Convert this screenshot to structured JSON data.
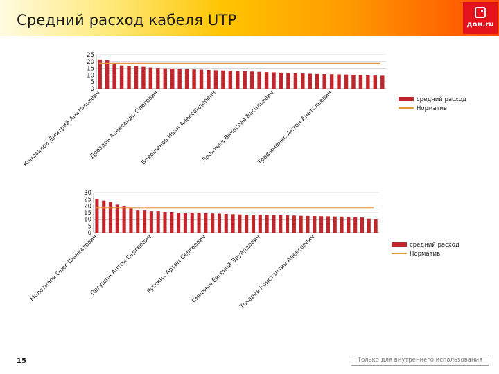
{
  "header": {
    "title": "Средний расход кабеля UTP",
    "logo_text": "дом.ru"
  },
  "footer": {
    "page_number": "15",
    "internal_note": "Только для внутреннего использования"
  },
  "colors": {
    "bar": "#c0272d",
    "norm": "#e8963a"
  },
  "chart_data": [
    {
      "type": "bar",
      "ylim": [
        0,
        25
      ],
      "yticks": [
        0,
        5,
        10,
        15,
        20,
        25
      ],
      "grid": true,
      "legend_position": "right",
      "tick_labels": [
        {
          "index": 0,
          "text": "Коновалов Дмитрий Анатольевич"
        },
        {
          "index": 8,
          "text": "Дроздов Александр Олегович"
        },
        {
          "index": 16,
          "text": "Бояршинов Иван Александрович"
        },
        {
          "index": 24,
          "text": "Леонтьев Вячеслав Васильевич"
        },
        {
          "index": 32,
          "text": "Трофименко Антон Анатольевич"
        }
      ],
      "series": [
        {
          "name": "средний расход",
          "type": "bar",
          "values": [
            21.5,
            21,
            18,
            17,
            16.8,
            16.5,
            16,
            15.5,
            15.3,
            15,
            14.8,
            14.6,
            14.4,
            14.2,
            14,
            13.8,
            13.6,
            13.4,
            13.2,
            13,
            12.8,
            12.6,
            12.4,
            12.2,
            12,
            11.8,
            11.6,
            11.4,
            11.2,
            11,
            10.8,
            10.7,
            10.6,
            10.5,
            10.4,
            10.2,
            10,
            9.8,
            9.6,
            9.5
          ]
        },
        {
          "name": "Норматив",
          "type": "line",
          "value": 18.5
        }
      ]
    },
    {
      "type": "bar",
      "ylim": [
        0,
        30
      ],
      "yticks": [
        0,
        5,
        10,
        15,
        20,
        25,
        30
      ],
      "grid": true,
      "legend_position": "right",
      "tick_labels": [
        {
          "index": 0,
          "text": "Молотилов Олег Шавкатович"
        },
        {
          "index": 8,
          "text": "Пегушин Антон Сергеевич"
        },
        {
          "index": 16,
          "text": "Русских Артем Сергеевич"
        },
        {
          "index": 24,
          "text": "Смирнов Евгений Эдуардович"
        },
        {
          "index": 32,
          "text": "Токарев Константин Алексеевич"
        }
      ],
      "series": [
        {
          "name": "средний расход",
          "type": "bar",
          "values": [
            25,
            24,
            23,
            21,
            20,
            18,
            17,
            17,
            16,
            16,
            15.5,
            15.5,
            15,
            15,
            15,
            14.8,
            14.6,
            14.4,
            14.2,
            14,
            13.8,
            13.6,
            13.5,
            13.4,
            13.3,
            13.2,
            13.1,
            13,
            12.9,
            12.8,
            12.6,
            12.5,
            12.4,
            12.3,
            12.2,
            12.1,
            12,
            11.8,
            11.6,
            11.4,
            10.5,
            10.3
          ]
        },
        {
          "name": "Норматив",
          "type": "line",
          "value": 18.5
        }
      ]
    }
  ]
}
